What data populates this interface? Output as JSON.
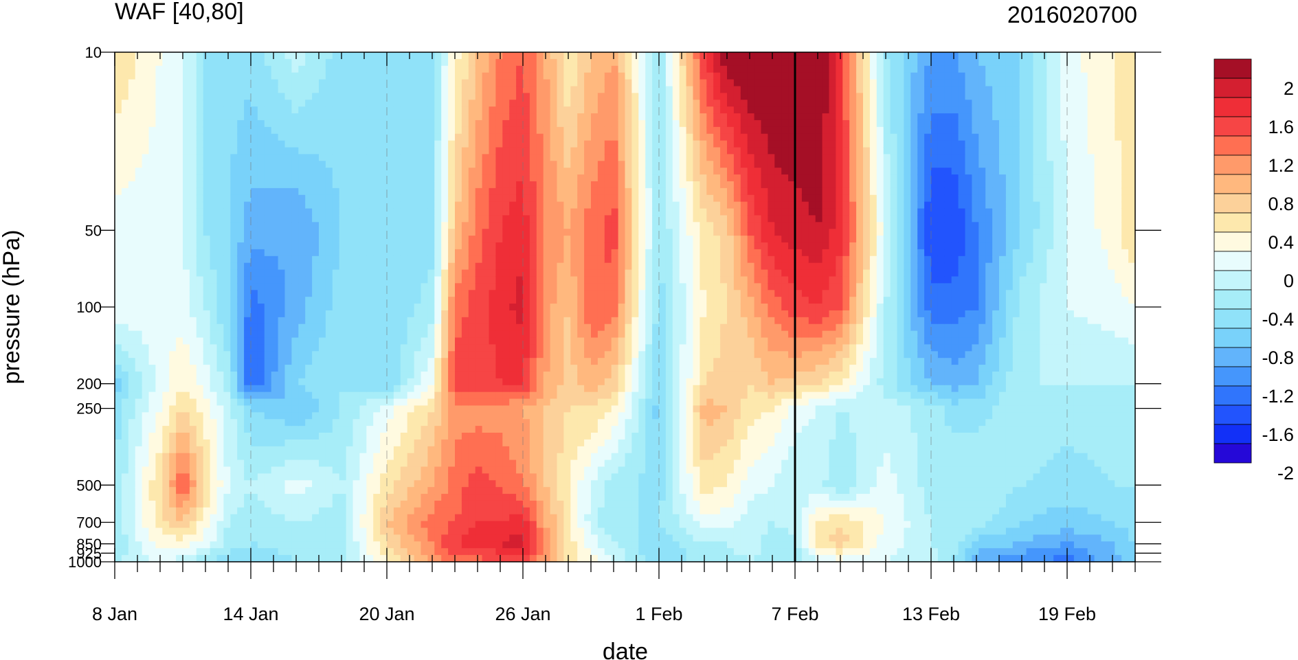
{
  "chart_data": {
    "type": "heatmap",
    "title": "WAF [40,80]",
    "date_stamp": "2016020700",
    "xlabel": "date",
    "ylabel": "pressure (hPa)",
    "x_ticks": [
      "8 Jan",
      "14 Jan",
      "20 Jan",
      "26 Jan",
      "1 Feb",
      "7 Feb",
      "13 Feb",
      "19 Feb"
    ],
    "x_tick_days": [
      0,
      6,
      12,
      18,
      24,
      30,
      36,
      42
    ],
    "x_range_days": [
      0,
      45
    ],
    "y_ticks": [
      "10",
      "50",
      "100",
      "200",
      "250",
      "500",
      "700",
      "850",
      "925",
      "1000"
    ],
    "y_tick_values": [
      10,
      50,
      100,
      200,
      250,
      500,
      700,
      850,
      925,
      1000
    ],
    "y_range_hPa": [
      1000,
      10
    ],
    "y_scale": "log-pressure",
    "vertical_marker_day": 30,
    "colorbar": {
      "labels": [
        "2",
        "1.6",
        "1.2",
        "0.8",
        "0.4",
        "0",
        "-0.4",
        "-0.8",
        "-1.2",
        "-1.6",
        "-2"
      ],
      "label_values": [
        2,
        1.6,
        1.2,
        0.8,
        0.4,
        0,
        -0.4,
        -0.8,
        -1.2,
        -1.6,
        -2
      ],
      "levels": [
        2.2,
        2.0,
        1.8,
        1.6,
        1.4,
        1.2,
        1.0,
        0.8,
        0.6,
        0.4,
        0.2,
        0,
        -0.2,
        -0.4,
        -0.6,
        -0.8,
        -1.0,
        -1.2,
        -1.4,
        -1.6,
        -1.8,
        -2.0,
        -2.2
      ],
      "colors": [
        "#a50f26",
        "#d41f30",
        "#ef2e37",
        "#f64545",
        "#ff6f52",
        "#ff9a6a",
        "#ffb87e",
        "#fcd19a",
        "#fde8ad",
        "#fffae0",
        "#e8fcfd",
        "#c4f5fb",
        "#a7edf8",
        "#90e2f9",
        "#79d2fa",
        "#62b4fb",
        "#4596fc",
        "#3075fc",
        "#2254fd",
        "#1230f7",
        "#2508d8"
      ]
    },
    "field": {
      "days": [
        0,
        2,
        3,
        4,
        5,
        6,
        8,
        10,
        12,
        14,
        15,
        16,
        17,
        18,
        19,
        20,
        21,
        22,
        24,
        26,
        27,
        28,
        29,
        30,
        31,
        32,
        34,
        36,
        37,
        38,
        40,
        42,
        44,
        45
      ],
      "pressures": [
        10,
        50,
        100,
        200,
        250,
        500,
        700,
        850,
        1000
      ],
      "values": [
        [
          0.6,
          0.1,
          0.2,
          -0.7,
          -0.5,
          -0.4,
          -0.3,
          -0.4,
          -0.2
        ],
        [
          0.2,
          0.1,
          0.1,
          0.1,
          0.2,
          0.6,
          0.5,
          0.3,
          0.0
        ],
        [
          0.0,
          0.0,
          0.1,
          0.4,
          0.6,
          1.4,
          0.8,
          0.3,
          -0.1
        ],
        [
          -0.4,
          -0.4,
          -0.2,
          0.1,
          0.3,
          0.6,
          0.3,
          0.1,
          -0.4
        ],
        [
          -0.5,
          -0.6,
          -0.6,
          -0.3,
          -0.1,
          0.0,
          -0.2,
          -0.3,
          -0.5
        ],
        [
          -0.5,
          -0.9,
          -1.3,
          -1.4,
          -0.6,
          -0.2,
          -0.3,
          -0.4,
          -0.6
        ],
        [
          -0.1,
          -1.0,
          -0.9,
          -0.6,
          -0.8,
          0.1,
          -0.2,
          -0.3,
          -0.4
        ],
        [
          -0.5,
          -0.6,
          -0.5,
          -0.4,
          -0.4,
          -0.2,
          -0.3,
          -0.3,
          -0.3
        ],
        [
          -0.5,
          -0.6,
          -0.6,
          -0.6,
          0.1,
          0.5,
          0.8,
          0.6,
          0.4
        ],
        [
          -0.4,
          -0.5,
          -0.3,
          0.2,
          0.6,
          1.0,
          1.3,
          1.2,
          1.0
        ],
        [
          0.3,
          0.8,
          1.3,
          1.5,
          1.1,
          1.3,
          1.4,
          1.6,
          1.3
        ],
        [
          0.8,
          1.3,
          1.5,
          1.5,
          1.1,
          1.5,
          1.6,
          1.7,
          1.3
        ],
        [
          1.2,
          1.6,
          1.7,
          1.6,
          1.1,
          1.4,
          1.6,
          1.8,
          1.4
        ],
        [
          1.4,
          1.7,
          1.9,
          1.6,
          1.0,
          1.2,
          1.7,
          1.9,
          1.5
        ],
        [
          1.0,
          1.2,
          1.1,
          1.0,
          0.8,
          0.8,
          1.0,
          1.2,
          1.0
        ],
        [
          0.4,
          1.0,
          0.8,
          0.7,
          0.6,
          0.4,
          0.5,
          0.5,
          0.5
        ],
        [
          0.8,
          1.3,
          1.4,
          0.9,
          0.6,
          0.0,
          -0.1,
          0.1,
          0.3
        ],
        [
          1.0,
          1.5,
          1.3,
          0.7,
          0.4,
          -0.3,
          -0.4,
          -0.2,
          0.0
        ],
        [
          -0.4,
          -0.4,
          -0.5,
          -0.6,
          -0.7,
          -0.5,
          -0.4,
          -0.6,
          -0.6
        ],
        [
          1.6,
          0.5,
          0.4,
          0.6,
          0.9,
          0.5,
          0.1,
          -0.2,
          -0.3
        ],
        [
          2.2,
          0.7,
          0.6,
          0.7,
          0.8,
          0.4,
          0.1,
          -0.2,
          -0.3
        ],
        [
          2.3,
          1.4,
          0.9,
          0.6,
          0.5,
          0.1,
          -0.1,
          -0.1,
          -0.2
        ],
        [
          2.3,
          1.8,
          1.3,
          0.8,
          0.4,
          0.0,
          -0.2,
          -0.3,
          -0.3
        ],
        [
          2.3,
          1.9,
          1.5,
          0.7,
          0.1,
          -0.2,
          -0.1,
          -0.3,
          -0.4
        ],
        [
          2.3,
          2.0,
          1.6,
          0.6,
          0.0,
          -0.1,
          0.4,
          0.5,
          0.0
        ],
        [
          1.6,
          1.7,
          1.4,
          0.4,
          -0.2,
          -0.4,
          0.6,
          0.7,
          0.1
        ],
        [
          -0.4,
          0.0,
          -0.2,
          -0.3,
          -0.1,
          0.1,
          0.2,
          0.1,
          0.0
        ],
        [
          -1.0,
          -1.6,
          -1.3,
          -0.8,
          -0.3,
          -0.3,
          -0.2,
          -0.2,
          -0.1
        ],
        [
          -1.0,
          -1.6,
          -1.3,
          -0.9,
          -0.5,
          -0.2,
          -0.2,
          -0.3,
          -0.4
        ],
        [
          -0.8,
          -1.2,
          -1.2,
          -0.8,
          -0.5,
          -0.2,
          -0.3,
          -0.7,
          -0.9
        ],
        [
          -0.6,
          -0.6,
          -0.3,
          -0.2,
          -0.2,
          -0.4,
          -0.6,
          -0.8,
          -1.2
        ],
        [
          0.1,
          0.0,
          0.0,
          -0.2,
          -0.3,
          -0.5,
          -0.7,
          -1.0,
          -1.3
        ],
        [
          0.4,
          0.3,
          0.1,
          -0.2,
          -0.3,
          -0.4,
          -0.6,
          -0.8,
          -0.9
        ],
        [
          0.5,
          0.6,
          0.2,
          -0.2,
          -0.3,
          -0.4,
          -0.5,
          -0.6,
          -0.7
        ]
      ]
    }
  }
}
